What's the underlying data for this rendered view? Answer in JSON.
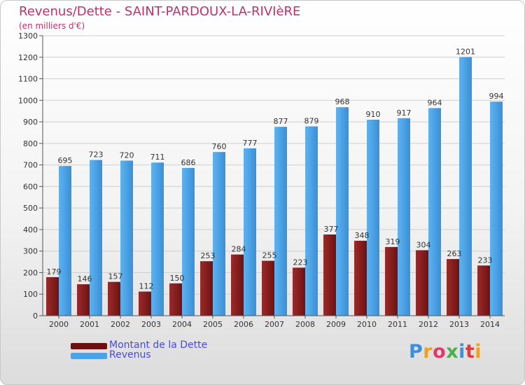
{
  "header": {
    "title": "Revenus/Dette - SAINT-PARDOUX-LA-RIVIèRE",
    "subtitle": "(en milliers d'€)"
  },
  "chart_data": {
    "type": "bar",
    "categories": [
      "2000",
      "2001",
      "2002",
      "2003",
      "2004",
      "2005",
      "2006",
      "2007",
      "2008",
      "2009",
      "2010",
      "2011",
      "2012",
      "2013",
      "2014"
    ],
    "series": [
      {
        "name": "Montant de la Dette",
        "color": "#8b1a1a",
        "values": [
          179,
          146,
          157,
          112,
          150,
          253,
          284,
          255,
          223,
          377,
          348,
          319,
          304,
          263,
          233
        ]
      },
      {
        "name": "Revenus",
        "color": "#4aa3e6",
        "values": [
          695,
          723,
          720,
          711,
          686,
          760,
          777,
          877,
          879,
          968,
          910,
          917,
          964,
          1201,
          994
        ]
      }
    ],
    "ylim": [
      0,
      1300
    ],
    "yticks": [
      0,
      100,
      200,
      300,
      400,
      500,
      600,
      700,
      800,
      900,
      1000,
      1100,
      1200,
      1300
    ],
    "grid": true,
    "legend": "bottom-left"
  },
  "legend": {
    "items": [
      {
        "label": "Montant de la Dette",
        "color": "#6b1010"
      },
      {
        "label": "Revenus",
        "color": "#4aa3e6"
      }
    ]
  },
  "logo": {
    "text": "Proxiti"
  }
}
